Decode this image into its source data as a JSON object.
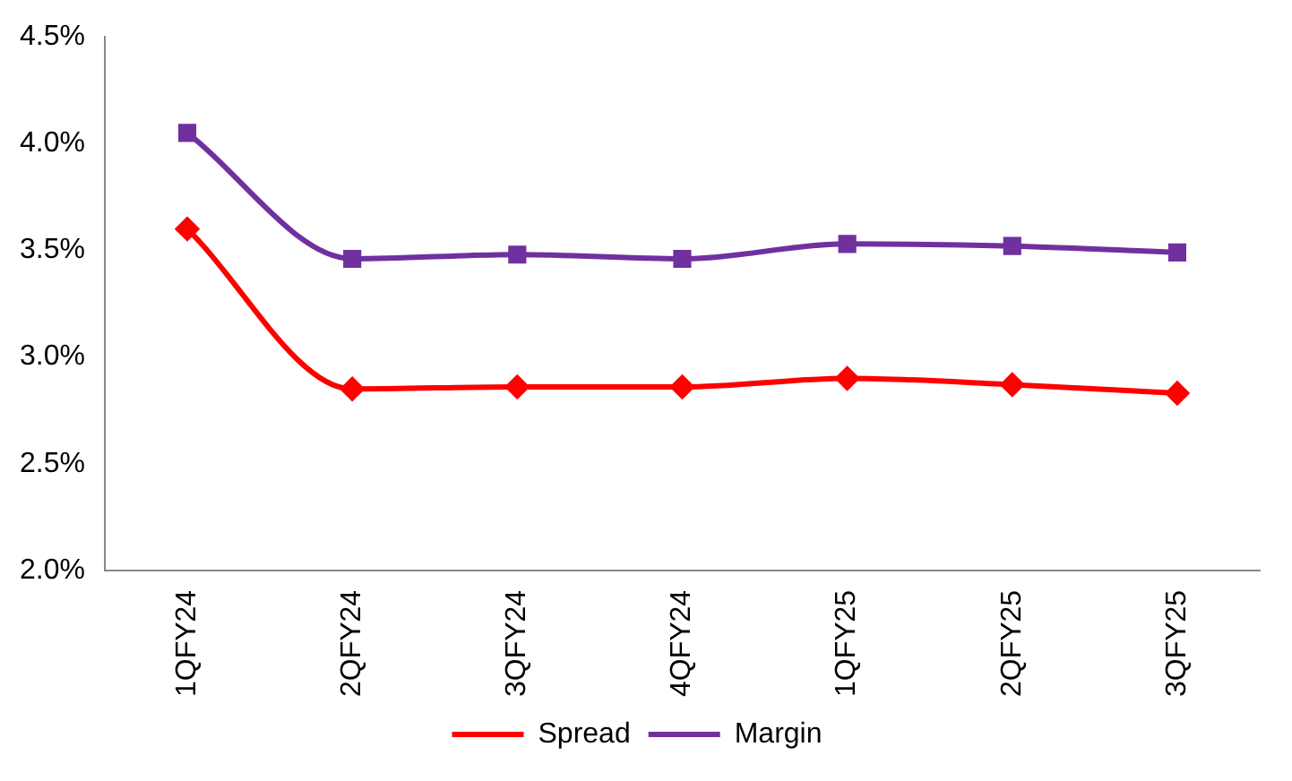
{
  "chart_data": {
    "type": "line",
    "categories": [
      "1QFY24",
      "2QFY24",
      "3QFY24",
      "4QFY24",
      "1QFY25",
      "2QFY25",
      "3QFY25"
    ],
    "series": [
      {
        "name": "Spread",
        "color": "#ff0000",
        "marker": "diamond",
        "values": [
          3.6,
          2.85,
          2.86,
          2.86,
          2.9,
          2.87,
          2.83
        ]
      },
      {
        "name": "Margin",
        "color": "#7030a0",
        "marker": "square",
        "values": [
          4.05,
          3.46,
          3.48,
          3.46,
          3.53,
          3.52,
          3.49
        ]
      }
    ],
    "ylim": [
      2.0,
      4.5
    ],
    "yticks": [
      {
        "value": 2.0,
        "label": "2.0%"
      },
      {
        "value": 2.5,
        "label": "2.5%"
      },
      {
        "value": 3.0,
        "label": "3.0%"
      },
      {
        "value": 3.5,
        "label": "3.5%"
      },
      {
        "value": 4.0,
        "label": "4.0%"
      },
      {
        "value": 4.5,
        "label": "4.5%"
      }
    ],
    "grid": false,
    "legend": "bottom"
  }
}
